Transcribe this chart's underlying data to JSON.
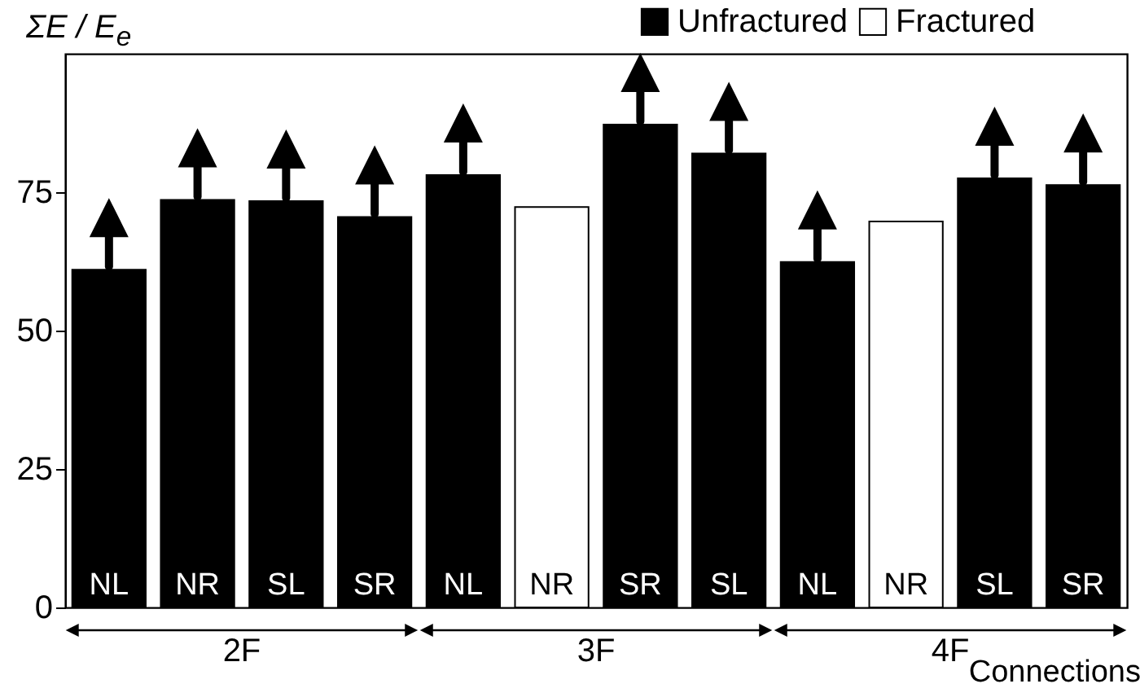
{
  "chart_data": {
    "type": "bar",
    "ylabel": "ΣE / E$_{e}$",
    "xlabel": "Connections",
    "categories": [
      "NL",
      "NR",
      "SL",
      "SR",
      "NL",
      "NR",
      "SR",
      "SL",
      "NL",
      "NR",
      "SL",
      "SR"
    ],
    "series": [
      {
        "name": "Unfractured",
        "color": "#000000",
        "values": [
          61.0,
          73.6,
          73.4,
          70.5,
          78.1,
          null,
          87.2,
          82.0,
          62.4,
          null,
          77.5,
          76.3
        ]
      },
      {
        "name": "Fractured",
        "color": "#ffffff",
        "values": [
          null,
          null,
          null,
          null,
          null,
          72.3,
          null,
          null,
          null,
          69.7,
          null,
          null
        ]
      }
    ],
    "annotations": [
      "2F",
      "3F",
      "4F"
    ],
    "ylim": [
      0,
      100
    ],
    "yticks": [
      0,
      25,
      50,
      75
    ],
    "grid": false,
    "legend": "top right"
  }
}
